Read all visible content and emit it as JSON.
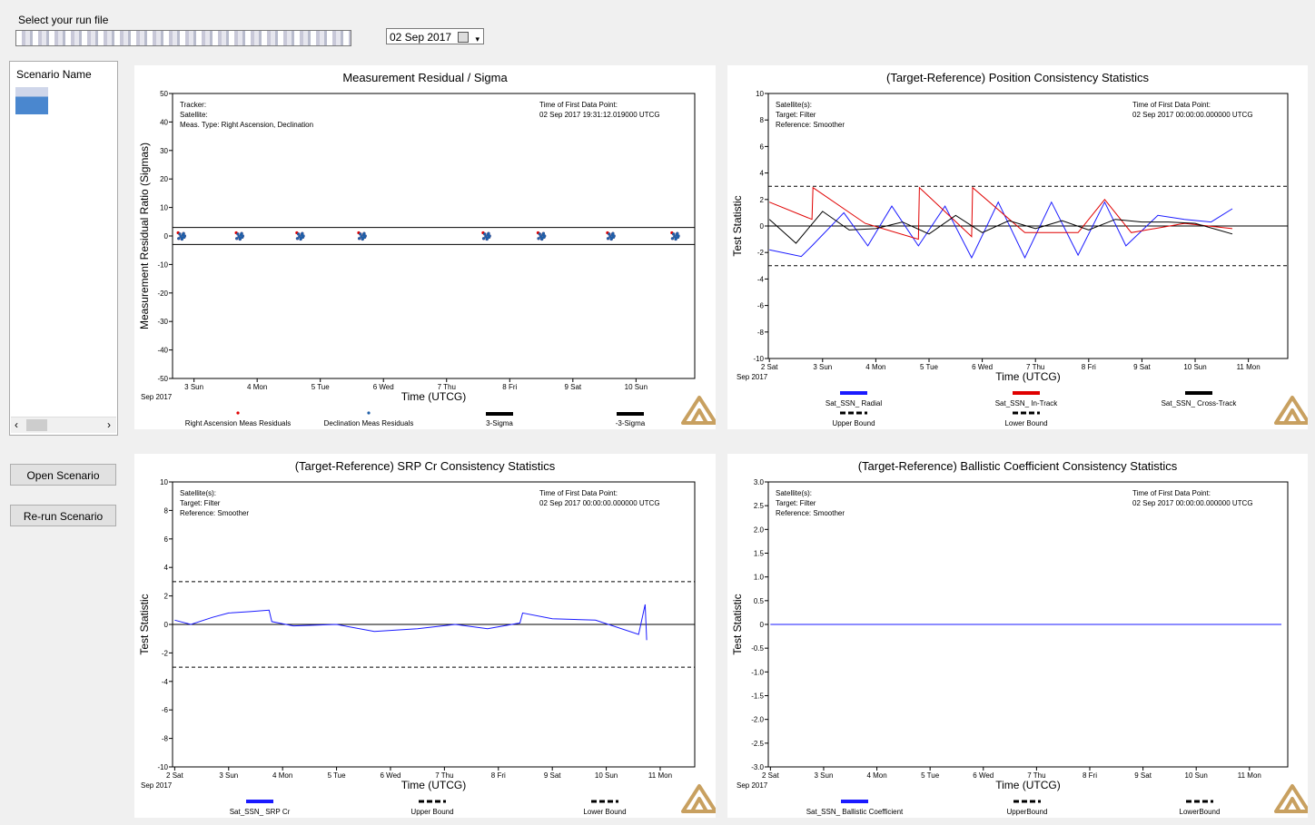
{
  "header": {
    "run_file_label": "Select your run file",
    "date_value": "02 Sep 2017"
  },
  "scenario": {
    "column_header": "Scenario Name"
  },
  "buttons": {
    "open": "Open Scenario",
    "rerun": "Re-run Scenario"
  },
  "icons": {
    "scroll_left": "‹",
    "scroll_right": "›",
    "calendar": "calendar-icon",
    "dropdown": "▾"
  },
  "panels": {
    "p1": {
      "title": "Measurement Residual / Sigma",
      "ylabel": "Measurement Residual Ratio (Sigmas)",
      "xlabel": "Time (UTCG)",
      "info_left": [
        "Tracker:",
        "Satellite:",
        "Meas. Type: Right Ascension, Declination"
      ],
      "info_right": [
        "Time of First Data Point:",
        "02 Sep 2017 19:31:12.019000 UTCG"
      ],
      "yticks": [
        "50",
        "40",
        "30",
        "20",
        "10",
        "0",
        "-10",
        "-20",
        "-30",
        "-40",
        "-50"
      ],
      "xticks": [
        "3 Sun",
        "4 Mon",
        "5 Tue",
        "6 Wed",
        "7 Thu",
        "8 Fri",
        "9 Sat",
        "10 Sun"
      ],
      "x_sub": "Sep 2017",
      "legend": [
        "Right Ascension Meas Residuals",
        "Declination Meas Residuals",
        "3-Sigma",
        "-3-Sigma"
      ]
    },
    "p2": {
      "title": "(Target-Reference) Position Consistency Statistics",
      "ylabel": "Test Statistic",
      "xlabel": "Time (UTCG)",
      "info_left": [
        "Satellite(s):",
        "Target: Filter",
        "Reference: Smoother"
      ],
      "info_right": [
        "Time of First Data Point:",
        "02 Sep 2017 00:00:00.000000 UTCG"
      ],
      "yticks": [
        "10",
        "8",
        "6",
        "4",
        "2",
        "0",
        "-2",
        "-4",
        "-6",
        "-8",
        "-10"
      ],
      "xticks": [
        "2 Sat",
        "3 Sun",
        "4 Mon",
        "5 Tue",
        "6 Wed",
        "7 Thu",
        "8 Fri",
        "9 Sat",
        "10 Sun",
        "11 Mon"
      ],
      "x_sub": "Sep 2017",
      "legend": [
        "Sat_SSN_ Radial",
        "Sat_SSN_ In-Track",
        "Sat_SSN_ Cross-Track",
        "Upper Bound",
        "Lower Bound"
      ]
    },
    "p3": {
      "title": "(Target-Reference) SRP Cr Consistency Statistics",
      "ylabel": "Test Statistic",
      "xlabel": "Time (UTCG)",
      "info_left": [
        "Satellite(s):",
        "Target: Filter",
        "Reference: Smoother"
      ],
      "info_right": [
        "Time of First Data Point:",
        "02 Sep 2017 00:00:00.000000 UTCG"
      ],
      "yticks": [
        "10",
        "8",
        "6",
        "4",
        "2",
        "0",
        "-2",
        "-4",
        "-6",
        "-8",
        "-10"
      ],
      "xticks": [
        "2 Sat",
        "3 Sun",
        "4 Mon",
        "5 Tue",
        "6 Wed",
        "7 Thu",
        "8 Fri",
        "9 Sat",
        "10 Sun",
        "11 Mon"
      ],
      "x_sub": "Sep 2017",
      "legend": [
        "Sat_SSN_ SRP Cr",
        "Upper Bound",
        "Lower Bound"
      ]
    },
    "p4": {
      "title": "(Target-Reference) Ballistic Coefficient Consistency Statistics",
      "ylabel": "Test Statistic",
      "xlabel": "Time (UTCG)",
      "info_left": [
        "Satellite(s):",
        "Target: Filter",
        "Reference: Smoother"
      ],
      "info_right": [
        "Time of First Data Point:",
        "02 Sep 2017 00:00:00.000000 UTCG"
      ],
      "yticks": [
        "3.0",
        "2.5",
        "2.0",
        "1.5",
        "1.0",
        "0.5",
        "0",
        "-0.5",
        "-1.0",
        "-1.5",
        "-2.0",
        "-2.5",
        "-3.0"
      ],
      "xticks": [
        "2 Sat",
        "3 Sun",
        "4 Mon",
        "5 Tue",
        "6 Wed",
        "7 Thu",
        "8 Fri",
        "9 Sat",
        "10 Sun",
        "11 Mon"
      ],
      "x_sub": "Sep 2017",
      "legend": [
        "Sat_SSN_ Ballistic Coefficient",
        "UpperBound",
        "LowerBound"
      ]
    }
  },
  "colors": {
    "radial": "#1a1aff",
    "in_track": "#e00000",
    "cross_track": "#000000",
    "bound": "#000000",
    "accent_logo": "#c8a060"
  },
  "chart_data": [
    {
      "type": "scatter",
      "title": "Measurement Residual / Sigma",
      "xlabel": "Time (UTCG)",
      "ylabel": "Measurement Residual Ratio (Sigmas)",
      "ylim": [
        -50,
        50
      ],
      "series": [
        {
          "name": "Right Ascension Meas Residuals",
          "x_day": [
            2.8,
            3.72,
            4.68,
            5.66,
            7.63,
            8.5,
            9.6,
            10.62
          ],
          "y": [
            0,
            0,
            0,
            0,
            0,
            0,
            0,
            0
          ]
        },
        {
          "name": "Declination Meas Residuals",
          "x_day": [
            2.8,
            3.72,
            4.68,
            5.66,
            7.63,
            8.5,
            9.6,
            10.62
          ],
          "y": [
            0,
            0,
            0,
            0,
            0,
            0,
            0,
            0
          ]
        },
        {
          "name": "3-Sigma",
          "y": 3
        },
        {
          "name": "-3-Sigma",
          "y": -3
        }
      ],
      "legend": "bottom"
    },
    {
      "type": "line",
      "title": "(Target-Reference) Position Consistency Statistics",
      "xlabel": "Time (UTCG)",
      "ylabel": "Test Statistic",
      "ylim": [
        -10,
        10
      ],
      "series": [
        {
          "name": "Sat_SSN_ Radial",
          "x_day": [
            2.0,
            2.6,
            2.8,
            3.4,
            3.85,
            4.3,
            4.8,
            5.3,
            5.8,
            6.3,
            6.8,
            7.3,
            7.8,
            8.3,
            8.7,
            9.3,
            9.8,
            10.3,
            10.7
          ],
          "y": [
            -1.8,
            -2.3,
            -1.5,
            1.0,
            -1.5,
            1.5,
            -1.5,
            1.5,
            -2.4,
            1.8,
            -2.4,
            1.8,
            -2.2,
            1.8,
            -1.5,
            0.8,
            0.5,
            0.3,
            1.3
          ]
        },
        {
          "name": "Sat_SSN_ In-Track",
          "x_day": [
            2.0,
            2.8,
            2.82,
            3.8,
            4.8,
            4.82,
            5.8,
            5.82,
            6.8,
            7.8,
            8.3,
            8.8,
            9.8,
            10.7
          ],
          "y": [
            1.8,
            0.5,
            2.9,
            0.2,
            -1.0,
            2.9,
            -0.8,
            2.9,
            -0.5,
            -0.5,
            2.0,
            -0.5,
            0.2,
            -0.2
          ]
        },
        {
          "name": "Sat_SSN_ Cross-Track",
          "x_day": [
            2.0,
            2.5,
            3.0,
            3.5,
            4.0,
            4.5,
            5.0,
            5.5,
            6.0,
            6.5,
            7.0,
            7.5,
            8.0,
            8.5,
            9.0,
            9.5,
            10.0,
            10.7
          ],
          "y": [
            0.5,
            -1.3,
            1.1,
            -0.3,
            -0.2,
            0.3,
            -0.6,
            0.8,
            -0.5,
            0.4,
            -0.2,
            0.4,
            -0.3,
            0.5,
            0.3,
            0.3,
            0.2,
            -0.6
          ]
        },
        {
          "name": "Upper Bound",
          "y": 3
        },
        {
          "name": "Lower Bound",
          "y": -3
        }
      ],
      "legend": "bottom"
    },
    {
      "type": "line",
      "title": "(Target-Reference) SRP Cr Consistency Statistics",
      "xlabel": "Time (UTCG)",
      "ylabel": "Test Statistic",
      "ylim": [
        -10,
        10
      ],
      "series": [
        {
          "name": "Sat_SSN_ SRP Cr",
          "x_day": [
            2.0,
            2.3,
            2.7,
            3.0,
            3.4,
            3.75,
            3.8,
            4.2,
            5.0,
            5.7,
            6.5,
            7.2,
            7.8,
            8.4,
            8.45,
            9.0,
            9.8,
            10.6,
            10.72,
            10.75
          ],
          "y": [
            0.3,
            0,
            0.5,
            0.8,
            0.9,
            1.0,
            0.2,
            -0.1,
            0,
            -0.5,
            -0.3,
            0,
            -0.3,
            0.1,
            0.8,
            0.4,
            0.3,
            -0.7,
            1.4,
            -1.1
          ]
        },
        {
          "name": "Upper Bound",
          "y": 3
        },
        {
          "name": "Lower Bound",
          "y": -3
        }
      ],
      "legend": "bottom"
    },
    {
      "type": "line",
      "title": "(Target-Reference) Ballistic Coefficient Consistency Statistics",
      "xlabel": "Time (UTCG)",
      "ylabel": "Test Statistic",
      "ylim": [
        -3,
        3
      ],
      "series": [
        {
          "name": "Sat_SSN_ Ballistic Coefficient",
          "x_day": [
            2.0,
            11.6
          ],
          "y": [
            0,
            0
          ]
        },
        {
          "name": "UpperBound",
          "y": 3
        },
        {
          "name": "LowerBound",
          "y": -3
        }
      ],
      "legend": "bottom"
    }
  ]
}
